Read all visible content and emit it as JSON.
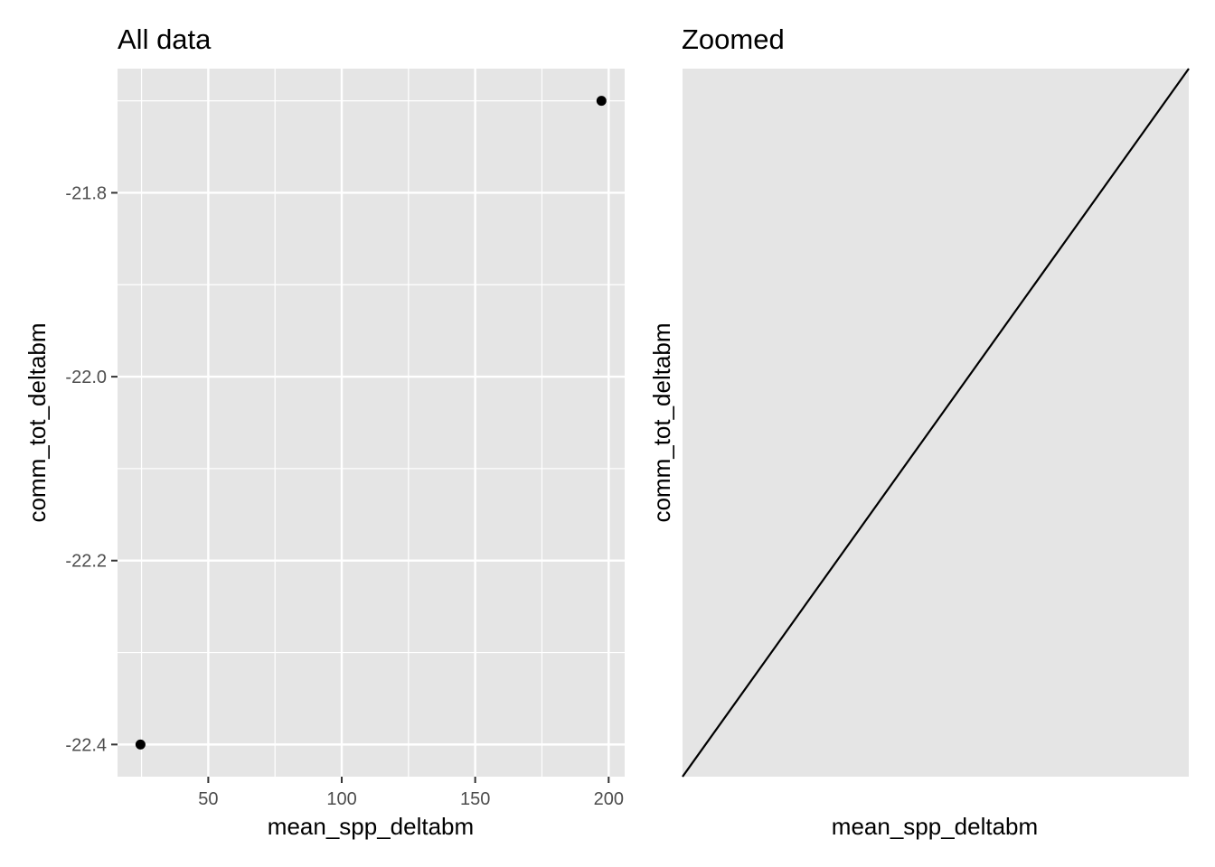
{
  "chart_data": [
    {
      "type": "scatter",
      "title": "All data",
      "xlabel": "mean_spp_deltabm",
      "ylabel": "comm_tot_deltabm",
      "xlim": [
        16,
        206
      ],
      "ylim": [
        -22.435,
        -21.665
      ],
      "x_ticks": [
        50,
        100,
        150,
        200
      ],
      "x_tick_labels": [
        "50",
        "100",
        "150",
        "200"
      ],
      "y_ticks": [
        -21.8,
        -22.0,
        -22.2,
        -22.4
      ],
      "y_tick_labels": [
        "-21.8",
        "-22.0",
        "-22.2",
        "-22.4"
      ],
      "points": [
        {
          "x": 24.6,
          "y": -22.4
        },
        {
          "x": 197.3,
          "y": -21.7
        }
      ],
      "background": "#e5e5e5",
      "grid": true,
      "point_color": "#000000"
    },
    {
      "type": "line",
      "title": "Zoomed",
      "xlabel": "mean_spp_deltabm",
      "ylabel": "comm_tot_deltabm",
      "line": [
        {
          "x": 0,
          "y": 0
        },
        {
          "x": 1,
          "y": 1
        }
      ],
      "background": "#e5e5e5",
      "grid": false,
      "line_color": "#000000"
    }
  ]
}
